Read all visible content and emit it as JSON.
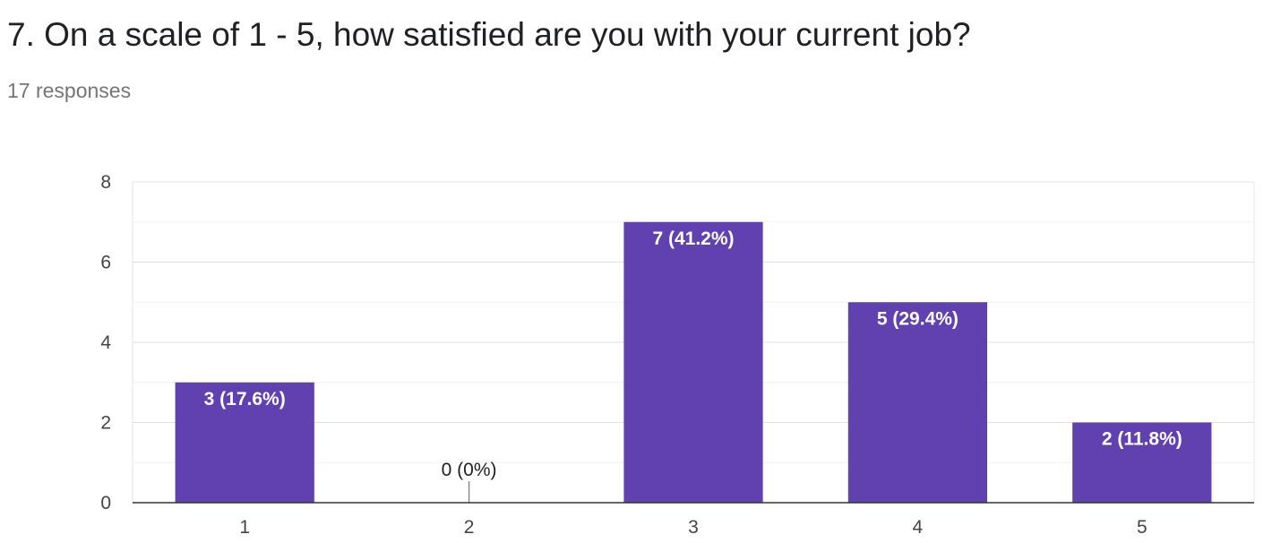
{
  "question": {
    "title": "7. On a scale of 1 - 5, how satisfied are you with your current job?",
    "responses": "17 responses"
  },
  "chart_data": {
    "type": "bar",
    "categories": [
      "1",
      "2",
      "3",
      "4",
      "5"
    ],
    "values": [
      3,
      0,
      7,
      5,
      2
    ],
    "data_labels": [
      "3 (17.6%)",
      "0 (0%)",
      "7 (41.2%)",
      "5 (29.4%)",
      "2 (11.8%)"
    ],
    "yticks": [
      "0",
      "2",
      "4",
      "6",
      "8"
    ],
    "ylim": [
      0,
      8
    ],
    "grid": true,
    "bar_color": "#6140b0"
  }
}
